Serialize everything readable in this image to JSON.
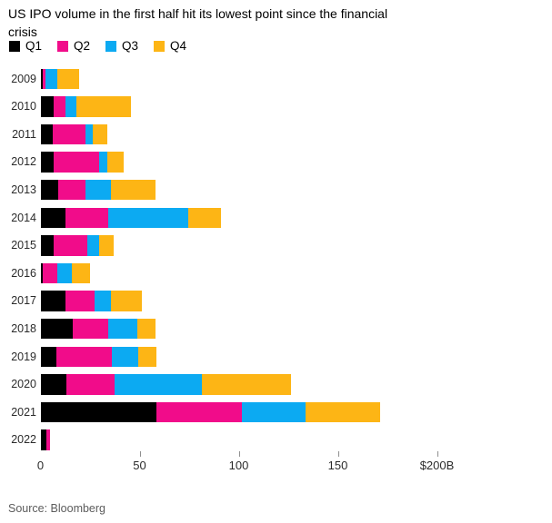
{
  "title_lines": {
    "line1": "US IPO volume in the first half hit its lowest point since the financial",
    "line2": "crisis"
  },
  "source": "Source: Bloomberg",
  "chart_data": {
    "type": "bar",
    "orientation": "horizontal",
    "stacked": true,
    "title": "US IPO volume in the first half hit its lowest point since the financial crisis",
    "categories": [
      "2009",
      "2010",
      "2011",
      "2012",
      "2013",
      "2014",
      "2015",
      "2016",
      "2017",
      "2018",
      "2019",
      "2020",
      "2021",
      "2022"
    ],
    "series": [
      {
        "name": "Q1",
        "color": "#000000",
        "values": [
          1,
          6.5,
          6,
          6.5,
          9,
          12.5,
          6.5,
          1,
          12.5,
          16.5,
          8,
          13,
          58.5,
          3
        ]
      },
      {
        "name": "Q2",
        "color": "#f10c8a",
        "values": [
          1.5,
          6,
          16.5,
          23,
          13.5,
          21.5,
          17,
          7.5,
          15,
          17.5,
          28,
          24.5,
          43,
          2
        ]
      },
      {
        "name": "Q3",
        "color": "#0caaf2",
        "values": [
          6,
          5.5,
          4,
          4,
          13,
          40.5,
          6,
          7.5,
          8,
          15,
          13.5,
          44,
          32,
          0
        ]
      },
      {
        "name": "Q4",
        "color": "#fdb515",
        "values": [
          11,
          27.5,
          7,
          8.5,
          22.5,
          16.5,
          7.5,
          9,
          15.5,
          9,
          9,
          45,
          38,
          0
        ]
      }
    ],
    "xlabel": "",
    "ylabel": "",
    "xlim": [
      0,
      200
    ],
    "grid": false,
    "legend_position": "top",
    "xticks": [
      {
        "value": 0,
        "label": "0",
        "tick_mark": false
      },
      {
        "value": 50,
        "label": "50",
        "tick_mark": true
      },
      {
        "value": 100,
        "label": "100",
        "tick_mark": true
      },
      {
        "value": 150,
        "label": "150",
        "tick_mark": true
      },
      {
        "value": 200,
        "label": "$200B",
        "tick_mark": true
      }
    ],
    "unit": "billions USD"
  }
}
